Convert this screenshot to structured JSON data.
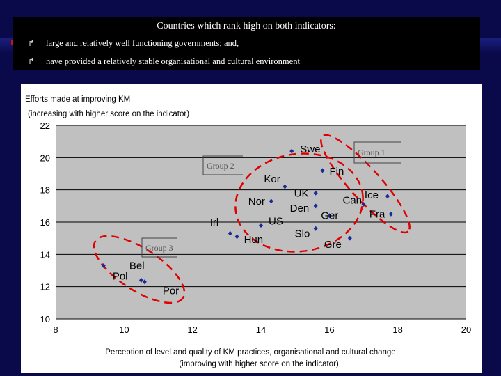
{
  "slide": {
    "heading": "Countries which rank high on both indicators:",
    "bullet_icon": "bullet-arrow-icon",
    "bullets": [
      "large and relatively well functioning governments; and,",
      "have provided a relatively stable organisational and cultural environment"
    ]
  },
  "chart_data": {
    "type": "scatter",
    "ylabel_line1": "Efforts made at improving KM",
    "ylabel_line2": "(increasing with higher score on the indicator)",
    "xlabel_line1": "Perception of level and quality of KM practices, organisational and cultural change",
    "xlabel_line2": "(improving with higher score on the indicator)",
    "xlim": [
      8,
      20
    ],
    "ylim": [
      10,
      22
    ],
    "xticks": [
      8,
      10,
      12,
      14,
      16,
      18,
      20
    ],
    "yticks": [
      10,
      12,
      14,
      16,
      18,
      20,
      22
    ],
    "grid": "horizontal",
    "marker_color": "#1a2a9a",
    "points": [
      {
        "label": "Swe",
        "x": 14.9,
        "y": 20.4
      },
      {
        "label": "Fin",
        "x": 15.8,
        "y": 19.2
      },
      {
        "label": "Kor",
        "x": 14.7,
        "y": 18.2
      },
      {
        "label": "UK",
        "x": 15.6,
        "y": 17.8
      },
      {
        "label": "Nor",
        "x": 14.3,
        "y": 17.3
      },
      {
        "label": "Can",
        "x": 17.0,
        "y": 17.1
      },
      {
        "label": "Ice",
        "x": 17.7,
        "y": 17.6
      },
      {
        "label": "Fra",
        "x": 17.8,
        "y": 16.5
      },
      {
        "label": "Den",
        "x": 15.6,
        "y": 17.0
      },
      {
        "label": "Irl",
        "x": 13.1,
        "y": 15.3
      },
      {
        "label": "US",
        "x": 14.0,
        "y": 15.8
      },
      {
        "label": "Hun",
        "x": 13.3,
        "y": 15.1
      },
      {
        "label": "Slo",
        "x": 15.6,
        "y": 15.6
      },
      {
        "label": "Ger",
        "x": 16.0,
        "y": 16.4
      },
      {
        "label": "Gre",
        "x": 16.6,
        "y": 15.0
      },
      {
        "label": "Pol",
        "x": 9.4,
        "y": 13.3
      },
      {
        "label": "Bel",
        "x": 10.5,
        "y": 12.4
      },
      {
        "label": "Por",
        "x": 10.6,
        "y": 12.3
      }
    ],
    "groups": [
      {
        "label": "Group 1"
      },
      {
        "label": "Group 2"
      },
      {
        "label": "Group 3"
      }
    ]
  }
}
